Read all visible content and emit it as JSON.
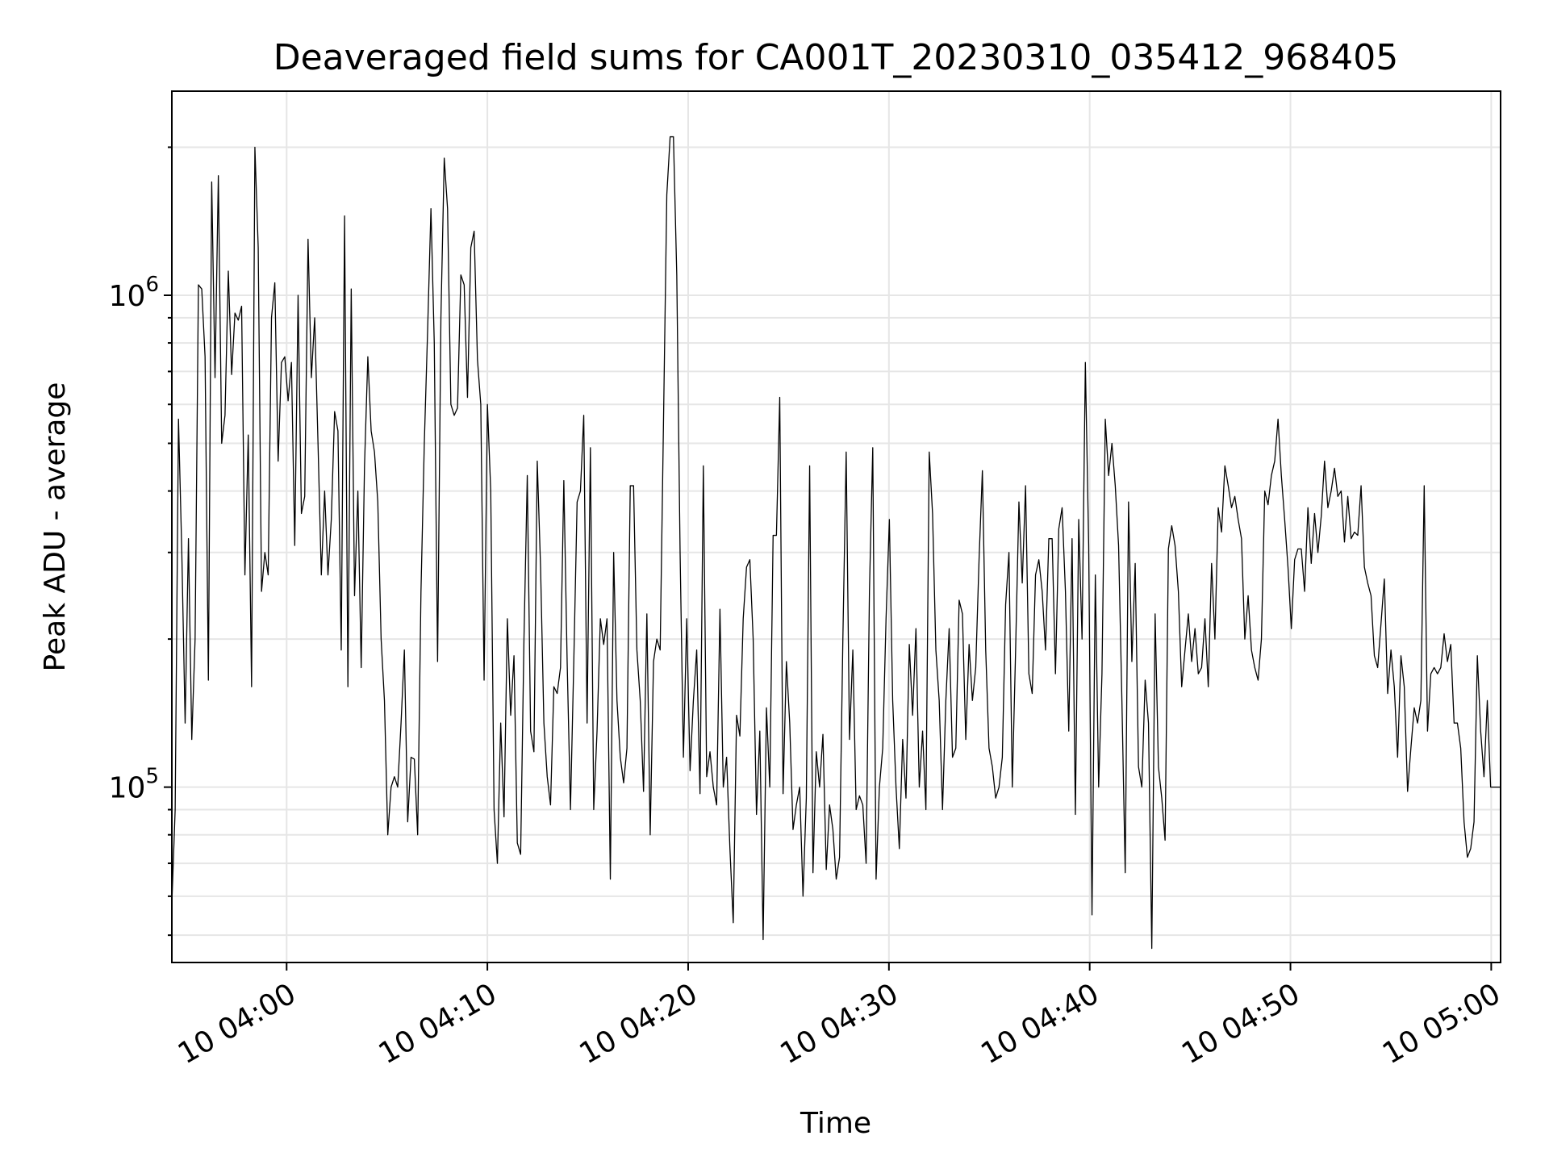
{
  "chart_data": {
    "type": "line",
    "title": "Deaveraged field sums for CA001T_20230310_035412_968405",
    "xlabel": "Time",
    "ylabel": "Peak ADU - average",
    "y_scale": "log",
    "ylim": [
      44000,
      2600000
    ],
    "x_start": "10 03:54:17",
    "x_end": "10 05:00:28",
    "grid": true,
    "line_color": "#000000",
    "grid_color": "#e6e6e6",
    "x_ticks": [
      {
        "time": "10 04:00",
        "label": "10 04:00"
      },
      {
        "time": "10 04:10",
        "label": "10 04:10"
      },
      {
        "time": "10 04:20",
        "label": "10 04:20"
      },
      {
        "time": "10 04:30",
        "label": "10 04:30"
      },
      {
        "time": "10 04:40",
        "label": "10 04:40"
      },
      {
        "time": "10 04:50",
        "label": "10 04:50"
      },
      {
        "time": "10 05:00",
        "label": "10 05:00"
      }
    ],
    "y_ticks": [
      {
        "value": 100000,
        "base": "10",
        "exp": "5"
      },
      {
        "value": 1000000,
        "base": "10",
        "exp": "6"
      }
    ],
    "series": [
      {
        "name": "",
        "values": [
          58000,
          90000,
          560000,
          300000,
          135000,
          320000,
          125000,
          200000,
          1050000,
          1030000,
          750000,
          165000,
          1700000,
          680000,
          1750000,
          500000,
          570000,
          1120000,
          690000,
          920000,
          890000,
          950000,
          270000,
          520000,
          160000,
          2000000,
          1250000,
          250000,
          300000,
          270000,
          900000,
          1060000,
          460000,
          730000,
          750000,
          610000,
          730000,
          310000,
          1000000,
          360000,
          390000,
          1300000,
          680000,
          900000,
          500000,
          270000,
          400000,
          270000,
          350000,
          580000,
          530000,
          190000,
          1450000,
          160000,
          1030000,
          245000,
          400000,
          175000,
          450000,
          750000,
          530000,
          480000,
          380000,
          200000,
          150000,
          80000,
          100000,
          105000,
          100000,
          135000,
          190000,
          85000,
          115000,
          114000,
          80000,
          250000,
          500000,
          850000,
          1500000,
          800000,
          180000,
          900000,
          1900000,
          1500000,
          600000,
          570000,
          590000,
          1100000,
          1050000,
          620000,
          1250000,
          1350000,
          740000,
          600000,
          165000,
          600000,
          400000,
          90000,
          70000,
          135000,
          87000,
          220000,
          140000,
          185000,
          77000,
          73000,
          200000,
          430000,
          130000,
          118000,
          460000,
          280000,
          135000,
          105000,
          92000,
          160000,
          155000,
          175000,
          420000,
          180000,
          90000,
          180000,
          380000,
          400000,
          570000,
          135000,
          490000,
          90000,
          130000,
          220000,
          195000,
          220000,
          65000,
          300000,
          150000,
          115000,
          102000,
          120000,
          410000,
          410000,
          190000,
          150000,
          98000,
          225000,
          80000,
          180000,
          200000,
          190000,
          550000,
          1600000,
          2100000,
          2100000,
          1100000,
          300000,
          115000,
          220000,
          108000,
          150000,
          190000,
          97000,
          450000,
          105000,
          118000,
          100000,
          92000,
          230000,
          100000,
          115000,
          75000,
          53000,
          140000,
          127000,
          220000,
          280000,
          290000,
          200000,
          88000,
          130000,
          49000,
          145000,
          100000,
          325000,
          325000,
          620000,
          97000,
          180000,
          135000,
          82000,
          92000,
          100000,
          60000,
          95000,
          450000,
          67000,
          118000,
          100000,
          128000,
          68000,
          92000,
          82000,
          65000,
          72000,
          200000,
          480000,
          125000,
          190000,
          90000,
          96000,
          92000,
          70000,
          250000,
          490000,
          65000,
          100000,
          120000,
          220000,
          350000,
          150000,
          100000,
          75000,
          125000,
          95000,
          195000,
          140000,
          210000,
          100000,
          130000,
          90000,
          480000,
          360000,
          190000,
          150000,
          90000,
          150000,
          210000,
          115000,
          120000,
          240000,
          225000,
          125000,
          195000,
          150000,
          175000,
          290000,
          440000,
          190000,
          120000,
          110000,
          95000,
          100000,
          115000,
          235000,
          300000,
          100000,
          190000,
          380000,
          260000,
          410000,
          170000,
          155000,
          270000,
          290000,
          250000,
          190000,
          320000,
          320000,
          170000,
          335000,
          370000,
          250000,
          130000,
          320000,
          88000,
          350000,
          200000,
          730000,
          310000,
          55000,
          270000,
          100000,
          170000,
          560000,
          430000,
          500000,
          410000,
          310000,
          150000,
          67000,
          380000,
          180000,
          285000,
          110000,
          100000,
          165000,
          135000,
          47000,
          225000,
          110000,
          95000,
          78000,
          305000,
          340000,
          310000,
          250000,
          160000,
          190000,
          225000,
          180000,
          210000,
          170000,
          175000,
          220000,
          160000,
          285000,
          200000,
          370000,
          330000,
          450000,
          410000,
          370000,
          390000,
          350000,
          320000,
          200000,
          245000,
          190000,
          175000,
          165000,
          200000,
          400000,
          375000,
          430000,
          460000,
          560000,
          430000,
          350000,
          280000,
          210000,
          290000,
          305000,
          305000,
          250000,
          370000,
          285000,
          360000,
          300000,
          355000,
          460000,
          370000,
          400000,
          445000,
          390000,
          400000,
          315000,
          390000,
          320000,
          330000,
          325000,
          410000,
          280000,
          260000,
          245000,
          185000,
          175000,
          215000,
          265000,
          155000,
          190000,
          160000,
          115000,
          185000,
          160000,
          98000,
          120000,
          145000,
          135000,
          150000,
          410000,
          130000,
          170000,
          175000,
          170000,
          175000,
          205000,
          180000,
          195000,
          135000,
          135000,
          120000,
          85000,
          72000,
          75000,
          85000,
          185000,
          130000,
          105000,
          150000,
          100000,
          100000,
          100000,
          100000
        ]
      }
    ]
  }
}
